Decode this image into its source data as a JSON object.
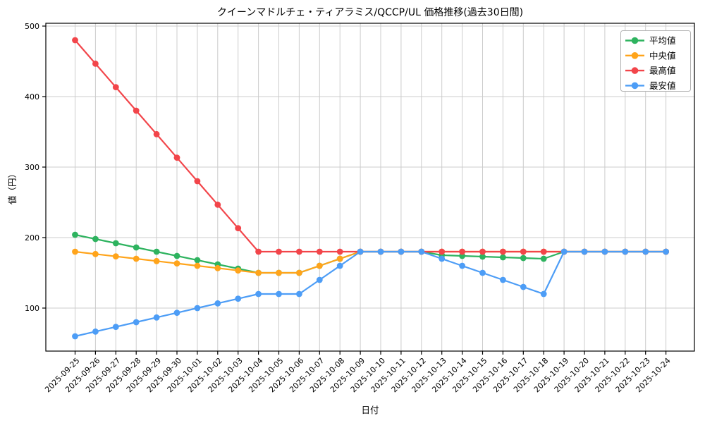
{
  "chart_data": {
    "type": "line",
    "title": "クイーンマドルチェ・ティアラミス/QCCP/UL 価格推移(過去30日間)",
    "xlabel": "日付",
    "ylabel": "値（円）",
    "x": [
      "2025-09-25",
      "2025-09-26",
      "2025-09-27",
      "2025-09-28",
      "2025-09-29",
      "2025-09-30",
      "2025-10-01",
      "2025-10-02",
      "2025-10-03",
      "2025-10-04",
      "2025-10-05",
      "2025-10-06",
      "2025-10-07",
      "2025-10-08",
      "2025-10-09",
      "2025-10-10",
      "2025-10-11",
      "2025-10-12",
      "2025-10-13",
      "2025-10-14",
      "2025-10-15",
      "2025-10-16",
      "2025-10-17",
      "2025-10-18",
      "2025-10-19",
      "2025-10-20",
      "2025-10-21",
      "2025-10-22",
      "2025-10-23",
      "2025-10-24"
    ],
    "y_ticks": [
      100,
      200,
      300,
      400,
      500
    ],
    "ylim": [
      39,
      504
    ],
    "grid": true,
    "legend_position": "upper right",
    "series": [
      {
        "name": "平均値",
        "key": "average",
        "color": "#2eb35f",
        "values": [
          204,
          198,
          192,
          186,
          180,
          174,
          168,
          162,
          156,
          150,
          150,
          150,
          160,
          170,
          180,
          180,
          180,
          180,
          175,
          174,
          173,
          172,
          171,
          170,
          180,
          180,
          180,
          180,
          180,
          180
        ]
      },
      {
        "name": "中央値",
        "key": "median",
        "color": "#ffa41b",
        "values": [
          180,
          176.67,
          173.33,
          170,
          166.67,
          163.33,
          160,
          156.67,
          153.33,
          150,
          150,
          150,
          160,
          170,
          180,
          180,
          180,
          180,
          180,
          180,
          180,
          180,
          180,
          180,
          180,
          180,
          180,
          180,
          180,
          180
        ]
      },
      {
        "name": "最高値",
        "key": "max",
        "color": "#f2454a",
        "values": [
          480,
          446.67,
          413.33,
          380,
          346.67,
          313.33,
          280,
          246.67,
          213.33,
          180,
          180,
          180,
          180,
          180,
          180,
          180,
          180,
          180,
          180,
          180,
          180,
          180,
          180,
          180,
          180,
          180,
          180,
          180,
          180,
          180
        ]
      },
      {
        "name": "最安値",
        "key": "min",
        "color": "#4d9df6",
        "values": [
          60,
          66.67,
          73.33,
          80,
          86.67,
          93.33,
          100,
          106.67,
          113.33,
          120,
          120,
          120,
          140,
          160,
          180,
          180,
          180,
          180,
          170,
          160,
          150,
          140,
          130,
          120,
          180,
          180,
          180,
          180,
          180,
          180
        ]
      }
    ],
    "colors": {
      "grid": "#cccccc",
      "frame": "#000000",
      "background": "#ffffff",
      "legend_border": "#b3b3b3"
    }
  }
}
